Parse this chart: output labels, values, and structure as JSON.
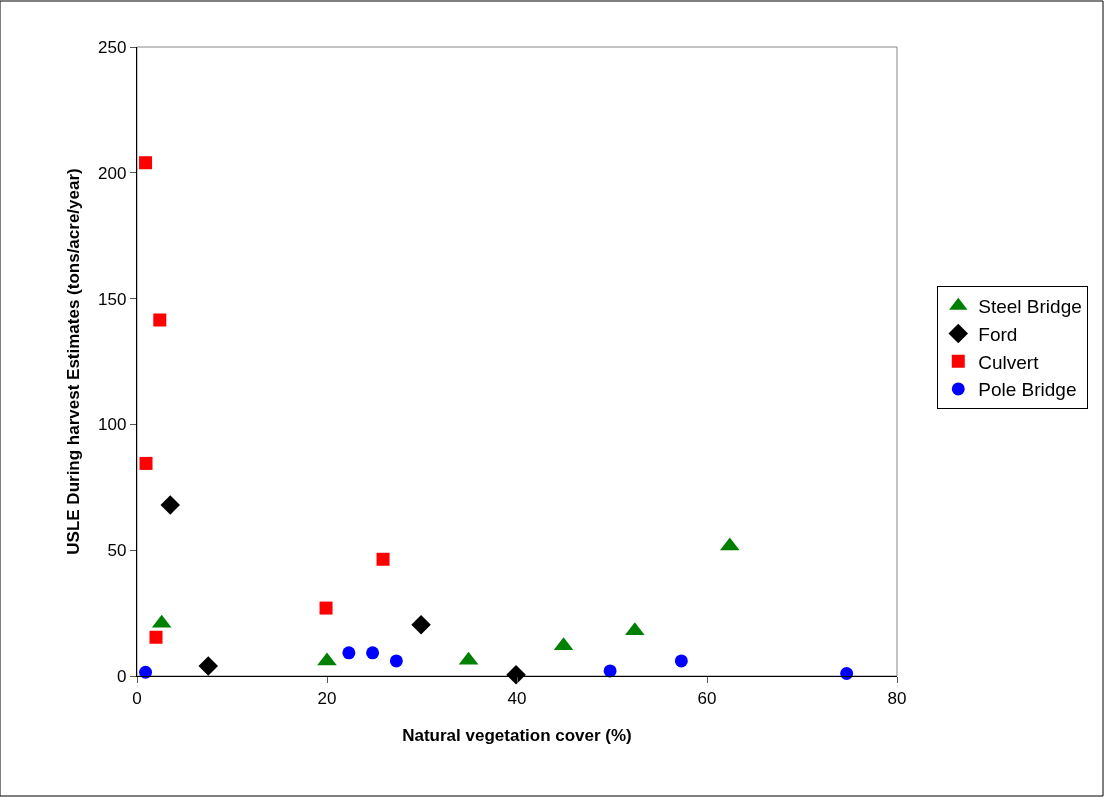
{
  "chart_data": {
    "type": "scatter",
    "xlabel": "Natural vegetation cover (%)",
    "ylabel": "USLE During harvest Estimates (tons/acre/year)",
    "xlim": [
      0,
      80
    ],
    "xticks": [
      0,
      20,
      40,
      60,
      80
    ],
    "ylim": [
      0,
      250
    ],
    "yticks": [
      0,
      50,
      100,
      150,
      200,
      250
    ],
    "legend": "right",
    "grid": false,
    "series": [
      {
        "name": "Steel Bridge",
        "color": "#008000",
        "marker": "triangle",
        "x": [
          2.6,
          20,
          34.9,
          44.9,
          52.4,
          62.4
        ],
        "values": [
          21,
          6,
          6.3,
          12,
          18,
          51.7
        ]
      },
      {
        "name": "Ford",
        "color": "#000000",
        "marker": "diamond",
        "x": [
          3.5,
          7.5,
          29.9,
          39.9
        ],
        "values": [
          68,
          4,
          20.4,
          0.5
        ]
      },
      {
        "name": "Culvert",
        "color": "#ff0000",
        "marker": "square",
        "x": [
          0.9,
          2.4,
          0.95,
          2.0,
          19.9,
          25.9
        ],
        "values": [
          204,
          141.5,
          84.5,
          15.4,
          27,
          46.4
        ]
      },
      {
        "name": "Pole Bridge",
        "color": "#0000ff",
        "marker": "circle",
        "x": [
          0.9,
          22.3,
          24.8,
          27.3,
          49.8,
          57.3,
          74.7
        ],
        "values": [
          1.5,
          9.2,
          9.2,
          6,
          2,
          6,
          1
        ]
      }
    ]
  }
}
